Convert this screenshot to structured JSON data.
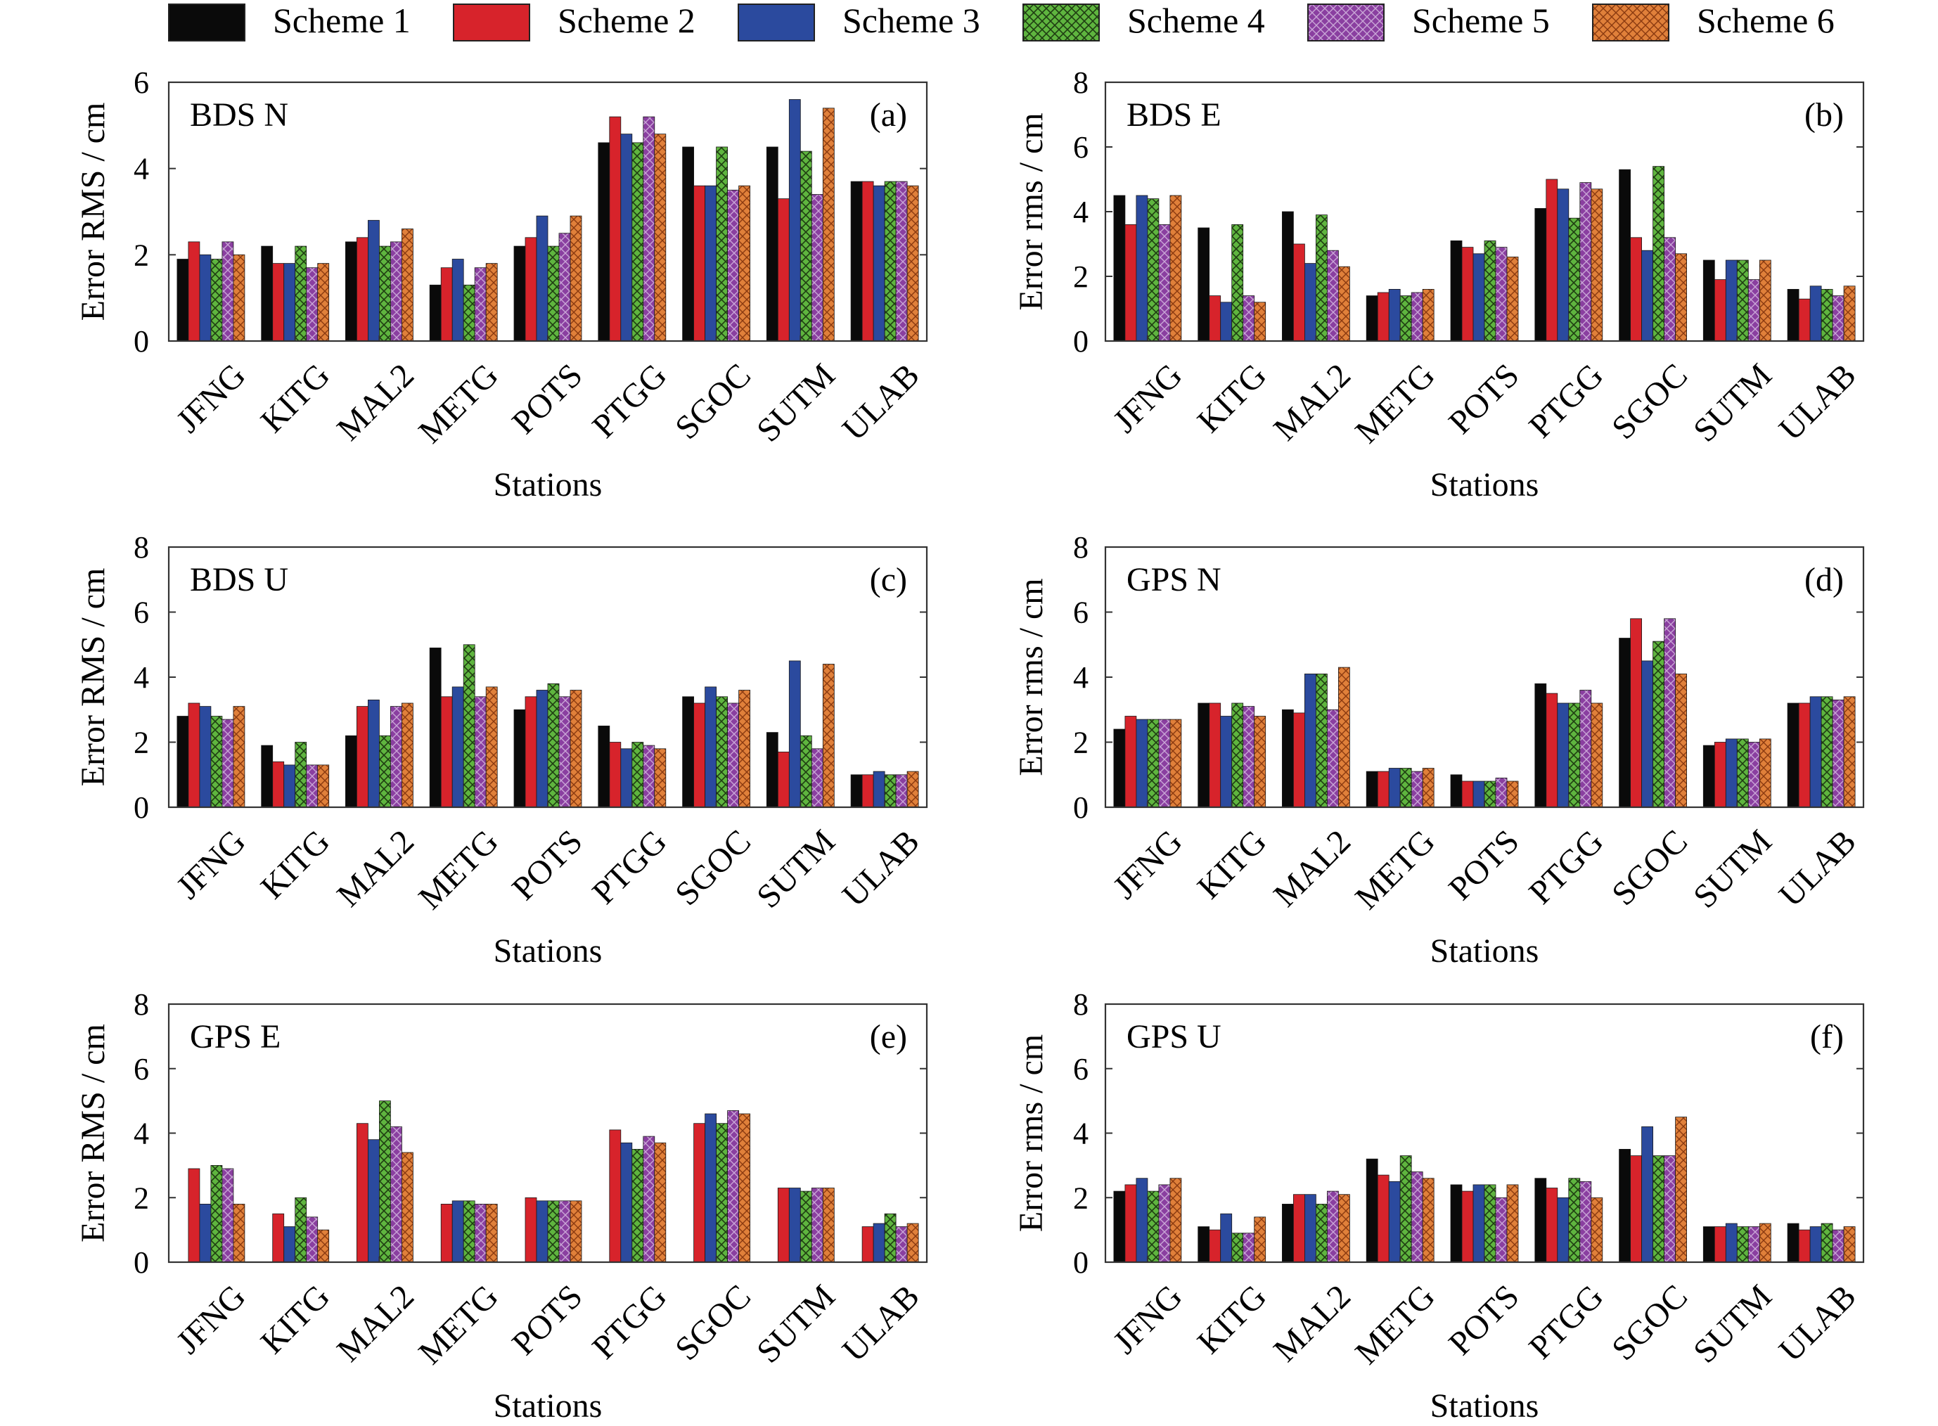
{
  "legend": [
    {
      "name": "Scheme 1",
      "color": "#0a0a0a",
      "pattern": "solid"
    },
    {
      "name": "Scheme 2",
      "color": "#d7232b",
      "pattern": "solid"
    },
    {
      "name": "Scheme 3",
      "color": "#2b4a9e",
      "pattern": "solid"
    },
    {
      "name": "Scheme 4",
      "color": "#5fb53f",
      "pattern": "crosshatch"
    },
    {
      "name": "Scheme 5",
      "color": "#8a3fa0",
      "pattern": "crosshatch"
    },
    {
      "name": "Scheme 6",
      "color": "#e0803a",
      "pattern": "crosshatch"
    }
  ],
  "chart_data": [
    {
      "type": "bar",
      "tag": "(a)",
      "title": "BDS N",
      "xlabel": "Stations",
      "ylabel": "Error RMS / cm",
      "ylim": [
        0,
        6
      ],
      "yticks": [
        0,
        2,
        4,
        6
      ],
      "categories": [
        "JFNG",
        "KITG",
        "MAL2",
        "METG",
        "POTS",
        "PTGG",
        "SGOC",
        "SUTM",
        "ULAB"
      ],
      "series": [
        {
          "name": "Scheme 1",
          "values": [
            1.9,
            2.2,
            2.3,
            1.3,
            2.2,
            4.6,
            4.5,
            4.5,
            3.7
          ]
        },
        {
          "name": "Scheme 2",
          "values": [
            2.3,
            1.8,
            2.4,
            1.7,
            2.4,
            5.2,
            3.6,
            3.3,
            3.7
          ]
        },
        {
          "name": "Scheme 3",
          "values": [
            2.0,
            1.8,
            2.8,
            1.9,
            2.9,
            4.8,
            3.6,
            5.6,
            3.6
          ]
        },
        {
          "name": "Scheme 4",
          "values": [
            1.9,
            2.2,
            2.2,
            1.3,
            2.2,
            4.6,
            4.5,
            4.4,
            3.7
          ]
        },
        {
          "name": "Scheme 5",
          "values": [
            2.3,
            1.7,
            2.3,
            1.7,
            2.5,
            5.2,
            3.5,
            3.4,
            3.7
          ]
        },
        {
          "name": "Scheme 6",
          "values": [
            2.0,
            1.8,
            2.6,
            1.8,
            2.9,
            4.8,
            3.6,
            5.4,
            3.6
          ]
        }
      ]
    },
    {
      "type": "bar",
      "tag": "(b)",
      "title": "BDS E",
      "xlabel": "Stations",
      "ylabel": "Error rms / cm",
      "ylim": [
        0,
        8
      ],
      "yticks": [
        0,
        2,
        4,
        6,
        8
      ],
      "categories": [
        "JFNG",
        "KITG",
        "MAL2",
        "METG",
        "POTS",
        "PTGG",
        "SGOC",
        "SUTM",
        "ULAB"
      ],
      "series": [
        {
          "name": "Scheme 1",
          "values": [
            4.5,
            3.5,
            4.0,
            1.4,
            3.1,
            4.1,
            5.3,
            2.5,
            1.6
          ]
        },
        {
          "name": "Scheme 2",
          "values": [
            3.6,
            1.4,
            3.0,
            1.5,
            2.9,
            5.0,
            3.2,
            1.9,
            1.3
          ]
        },
        {
          "name": "Scheme 3",
          "values": [
            4.5,
            1.2,
            2.4,
            1.6,
            2.7,
            4.7,
            2.8,
            2.5,
            1.7
          ]
        },
        {
          "name": "Scheme 4",
          "values": [
            4.4,
            3.6,
            3.9,
            1.4,
            3.1,
            3.8,
            5.4,
            2.5,
            1.6
          ]
        },
        {
          "name": "Scheme 5",
          "values": [
            3.6,
            1.4,
            2.8,
            1.5,
            2.9,
            4.9,
            3.2,
            1.9,
            1.4
          ]
        },
        {
          "name": "Scheme 6",
          "values": [
            4.5,
            1.2,
            2.3,
            1.6,
            2.6,
            4.7,
            2.7,
            2.5,
            1.7
          ]
        }
      ]
    },
    {
      "type": "bar",
      "tag": "(c)",
      "title": "BDS U",
      "xlabel": "Stations",
      "ylabel": "Error RMS / cm",
      "ylim": [
        0,
        8
      ],
      "yticks": [
        0,
        2,
        4,
        6,
        8
      ],
      "categories": [
        "JFNG",
        "KITG",
        "MAL2",
        "METG",
        "POTS",
        "PTGG",
        "SGOC",
        "SUTM",
        "ULAB"
      ],
      "series": [
        {
          "name": "Scheme 1",
          "values": [
            2.8,
            1.9,
            2.2,
            4.9,
            3.0,
            2.5,
            3.4,
            2.3,
            1.0
          ]
        },
        {
          "name": "Scheme 2",
          "values": [
            3.2,
            1.4,
            3.1,
            3.4,
            3.4,
            2.0,
            3.2,
            1.7,
            1.0
          ]
        },
        {
          "name": "Scheme 3",
          "values": [
            3.1,
            1.3,
            3.3,
            3.7,
            3.6,
            1.8,
            3.7,
            4.5,
            1.1
          ]
        },
        {
          "name": "Scheme 4",
          "values": [
            2.8,
            2.0,
            2.2,
            5.0,
            3.8,
            2.0,
            3.4,
            2.2,
            1.0
          ]
        },
        {
          "name": "Scheme 5",
          "values": [
            2.7,
            1.3,
            3.1,
            3.4,
            3.4,
            1.9,
            3.2,
            1.8,
            1.0
          ]
        },
        {
          "name": "Scheme 6",
          "values": [
            3.1,
            1.3,
            3.2,
            3.7,
            3.6,
            1.8,
            3.6,
            4.4,
            1.1
          ]
        }
      ]
    },
    {
      "type": "bar",
      "tag": "(d)",
      "title": "GPS N",
      "xlabel": "Stations",
      "ylabel": "Error rms / cm",
      "ylim": [
        0,
        8
      ],
      "yticks": [
        0,
        2,
        4,
        6,
        8
      ],
      "categories": [
        "JFNG",
        "KITG",
        "MAL2",
        "METG",
        "POTS",
        "PTGG",
        "SGOC",
        "SUTM",
        "ULAB"
      ],
      "series": [
        {
          "name": "Scheme 1",
          "values": [
            2.4,
            3.2,
            3.0,
            1.1,
            1.0,
            3.8,
            5.2,
            1.9,
            3.2
          ]
        },
        {
          "name": "Scheme 2",
          "values": [
            2.8,
            3.2,
            2.9,
            1.1,
            0.8,
            3.5,
            5.8,
            2.0,
            3.2
          ]
        },
        {
          "name": "Scheme 3",
          "values": [
            2.7,
            2.8,
            4.1,
            1.2,
            0.8,
            3.2,
            4.5,
            2.1,
            3.4
          ]
        },
        {
          "name": "Scheme 4",
          "values": [
            2.7,
            3.2,
            4.1,
            1.2,
            0.8,
            3.2,
            5.1,
            2.1,
            3.4
          ]
        },
        {
          "name": "Scheme 5",
          "values": [
            2.7,
            3.1,
            3.0,
            1.1,
            0.9,
            3.6,
            5.8,
            2.0,
            3.3
          ]
        },
        {
          "name": "Scheme 6",
          "values": [
            2.7,
            2.8,
            4.3,
            1.2,
            0.8,
            3.2,
            4.1,
            2.1,
            3.4
          ]
        }
      ]
    },
    {
      "type": "bar",
      "tag": "(e)",
      "title": "GPS E",
      "xlabel": "Stations",
      "ylabel": "Error RMS / cm",
      "ylim": [
        0,
        8
      ],
      "yticks": [
        0,
        2,
        4,
        6,
        8
      ],
      "categories": [
        "JFNG",
        "KITG",
        "MAL2",
        "METG",
        "POTS",
        "PTGG",
        "SGOC",
        "SUTM",
        "ULAB"
      ],
      "series": [
        {
          "name": "Scheme 1",
          "values": [
            0,
            0,
            0,
            0,
            0,
            0,
            0,
            0,
            0
          ]
        },
        {
          "name": "Scheme 2",
          "values": [
            2.9,
            1.5,
            4.3,
            1.8,
            2.0,
            4.1,
            4.3,
            2.3,
            1.1
          ]
        },
        {
          "name": "Scheme 3",
          "values": [
            1.8,
            1.1,
            3.8,
            1.9,
            1.9,
            3.7,
            4.6,
            2.3,
            1.2
          ]
        },
        {
          "name": "Scheme 4",
          "values": [
            3.0,
            2.0,
            5.0,
            1.9,
            1.9,
            3.5,
            4.3,
            2.2,
            1.5
          ]
        },
        {
          "name": "Scheme 5",
          "values": [
            2.9,
            1.4,
            4.2,
            1.8,
            1.9,
            3.9,
            4.7,
            2.3,
            1.1
          ]
        },
        {
          "name": "Scheme 6",
          "values": [
            1.8,
            1.0,
            3.4,
            1.8,
            1.9,
            3.7,
            4.6,
            2.3,
            1.2
          ]
        }
      ]
    },
    {
      "type": "bar",
      "tag": "(f)",
      "title": "GPS U",
      "xlabel": "Stations",
      "ylabel": "Error rms / cm",
      "ylim": [
        0,
        8
      ],
      "yticks": [
        0,
        2,
        4,
        6,
        8
      ],
      "categories": [
        "JFNG",
        "KITG",
        "MAL2",
        "METG",
        "POTS",
        "PTGG",
        "SGOC",
        "SUTM",
        "ULAB"
      ],
      "series": [
        {
          "name": "Scheme 1",
          "values": [
            2.2,
            1.1,
            1.8,
            3.2,
            2.4,
            2.6,
            3.5,
            1.1,
            1.2
          ]
        },
        {
          "name": "Scheme 2",
          "values": [
            2.4,
            1.0,
            2.1,
            2.7,
            2.2,
            2.3,
            3.3,
            1.1,
            1.0
          ]
        },
        {
          "name": "Scheme 3",
          "values": [
            2.6,
            1.5,
            2.1,
            2.5,
            2.4,
            2.0,
            4.2,
            1.2,
            1.1
          ]
        },
        {
          "name": "Scheme 4",
          "values": [
            2.2,
            0.9,
            1.8,
            3.3,
            2.4,
            2.6,
            3.3,
            1.1,
            1.2
          ]
        },
        {
          "name": "Scheme 5",
          "values": [
            2.4,
            0.9,
            2.2,
            2.8,
            2.0,
            2.5,
            3.3,
            1.1,
            1.0
          ]
        },
        {
          "name": "Scheme 6",
          "values": [
            2.6,
            1.4,
            2.1,
            2.6,
            2.4,
            2.0,
            4.5,
            1.2,
            1.1
          ]
        }
      ]
    }
  ]
}
